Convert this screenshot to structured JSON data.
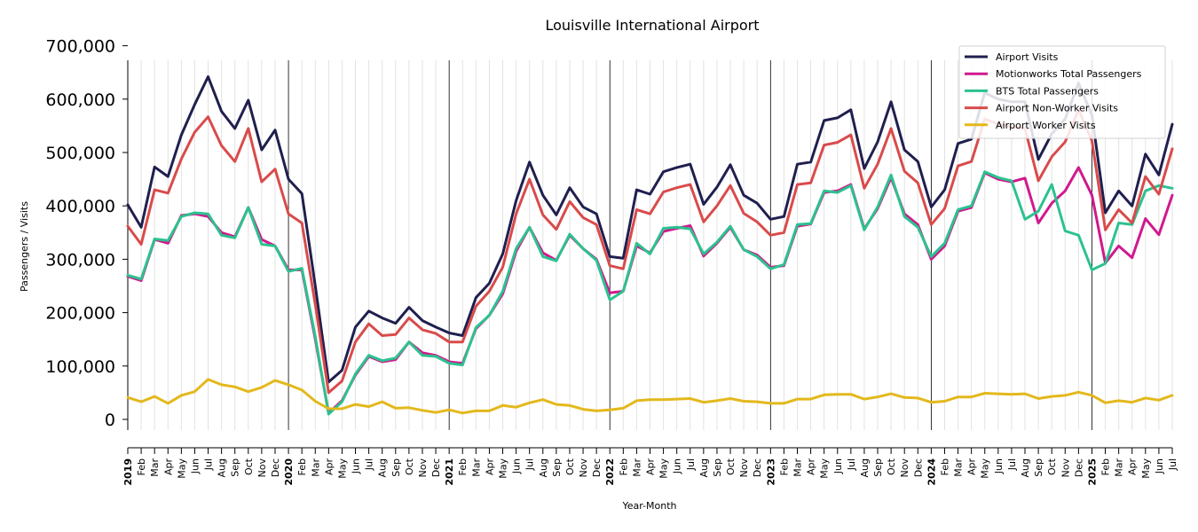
{
  "chart_data": {
    "type": "line",
    "title": "Louisville International Airport",
    "xlabel": "Year-Month",
    "ylabel": "Passengers / Visits",
    "ylim": [
      -20000,
      700000
    ],
    "yticks": [
      0,
      100000,
      200000,
      300000,
      400000,
      500000,
      600000,
      700000
    ],
    "ytick_labels": [
      "0",
      "100,000",
      "200,000",
      "300,000",
      "400,000",
      "500,000",
      "600,000",
      "700,000"
    ],
    "legend_position": "top-right",
    "year_labels": [
      "2019",
      "2020",
      "2021",
      "2022",
      "2023",
      "2024",
      "2025"
    ],
    "categories": [
      "2019",
      "Feb",
      "Mar",
      "Apr",
      "May",
      "Jun",
      "Jul",
      "Aug",
      "Sep",
      "Oct",
      "Nov",
      "Dec",
      "2020",
      "Feb",
      "Mar",
      "Apr",
      "May",
      "Jun",
      "Jul",
      "Aug",
      "Sep",
      "Oct",
      "Nov",
      "Dec",
      "2021",
      "Feb",
      "Mar",
      "Apr",
      "May",
      "Jun",
      "Jul",
      "Aug",
      "Sep",
      "Oct",
      "Nov",
      "Dec",
      "2022",
      "Feb",
      "Mar",
      "Apr",
      "May",
      "Jun",
      "Jul",
      "Aug",
      "Sep",
      "Oct",
      "Nov",
      "Dec",
      "2023",
      "Feb",
      "Mar",
      "Apr",
      "May",
      "Jun",
      "Jul",
      "Aug",
      "Sep",
      "Oct",
      "Nov",
      "Dec",
      "2024",
      "Feb",
      "Mar",
      "Apr",
      "May",
      "Jun",
      "Jul",
      "Aug",
      "Sep",
      "Oct",
      "Nov",
      "Dec",
      "2025",
      "Feb",
      "Mar",
      "Apr",
      "May",
      "Jun",
      "Jul"
    ],
    "series": [
      {
        "name": "Airport Visits",
        "color": "#1f1f4f",
        "values": [
          402000,
          360000,
          473000,
          455000,
          533000,
          590000,
          642000,
          577000,
          545000,
          598000,
          505000,
          542000,
          450000,
          423000,
          250000,
          70000,
          92000,
          173000,
          203000,
          190000,
          180000,
          210000,
          185000,
          173000,
          162000,
          157000,
          228000,
          255000,
          310000,
          410000,
          482000,
          420000,
          383000,
          434000,
          398000,
          385000,
          305000,
          302000,
          430000,
          422000,
          464000,
          472000,
          478000,
          403000,
          435000,
          477000,
          420000,
          405000,
          375000,
          380000,
          478000,
          482000,
          560000,
          565000,
          580000,
          470000,
          520000,
          595000,
          505000,
          483000,
          398000,
          430000,
          517000,
          525000,
          612000,
          600000,
          595000,
          595000,
          487000,
          535000,
          563000,
          630000,
          570000,
          387000,
          428000,
          400000,
          497000,
          458000,
          553000
        ]
      },
      {
        "name": "Motionworks Total Passengers",
        "color": "#d0198e",
        "values": [
          268000,
          260000,
          337000,
          330000,
          382000,
          385000,
          380000,
          350000,
          342000,
          397000,
          337000,
          325000,
          280000,
          280000,
          150000,
          12000,
          35000,
          83000,
          118000,
          108000,
          112000,
          145000,
          125000,
          120000,
          108000,
          105000,
          170000,
          195000,
          235000,
          315000,
          360000,
          312000,
          298000,
          345000,
          320000,
          300000,
          237000,
          240000,
          325000,
          312000,
          352000,
          358000,
          363000,
          306000,
          330000,
          360000,
          318000,
          308000,
          285000,
          288000,
          362000,
          366000,
          425000,
          428000,
          440000,
          357000,
          395000,
          453000,
          385000,
          365000,
          300000,
          325000,
          390000,
          397000,
          462000,
          450000,
          445000,
          452000,
          368000,
          405000,
          428000,
          472000,
          420000,
          293000,
          325000,
          303000,
          376000,
          346000,
          420000
        ]
      },
      {
        "name": "BTS Total Passengers",
        "color": "#2cc28f",
        "values": [
          270000,
          263000,
          338000,
          335000,
          380000,
          387000,
          385000,
          345000,
          340000,
          397000,
          328000,
          325000,
          277000,
          283000,
          155000,
          10000,
          33000,
          85000,
          120000,
          110000,
          115000,
          145000,
          120000,
          118000,
          105000,
          102000,
          172000,
          195000,
          240000,
          320000,
          360000,
          305000,
          297000,
          347000,
          320000,
          298000,
          224000,
          240000,
          330000,
          310000,
          358000,
          360000,
          357000,
          310000,
          332000,
          362000,
          318000,
          305000,
          282000,
          290000,
          365000,
          367000,
          428000,
          425000,
          438000,
          355000,
          398000,
          458000,
          380000,
          360000,
          305000,
          330000,
          393000,
          400000,
          464000,
          453000,
          447000,
          375000,
          390000,
          440000,
          353000,
          345000,
          280000,
          292000,
          368000,
          365000,
          428000,
          438000,
          433000
        ]
      },
      {
        "name": "Airport Non-Worker Visits",
        "color": "#d94b4b",
        "values": [
          362000,
          328000,
          430000,
          424000,
          488000,
          538000,
          567000,
          513000,
          483000,
          545000,
          445000,
          469000,
          385000,
          368000,
          215000,
          50000,
          72000,
          145000,
          179000,
          157000,
          159000,
          190000,
          168000,
          161000,
          145000,
          145000,
          212000,
          240000,
          285000,
          385000,
          450000,
          383000,
          356000,
          408000,
          378000,
          365000,
          288000,
          282000,
          393000,
          385000,
          426000,
          434000,
          440000,
          370000,
          400000,
          438000,
          386000,
          370000,
          345000,
          350000,
          440000,
          443000,
          514000,
          519000,
          533000,
          433000,
          478000,
          545000,
          465000,
          443000,
          365000,
          395000,
          475000,
          483000,
          563000,
          553000,
          548000,
          545000,
          447000,
          492000,
          520000,
          580000,
          522000,
          355000,
          393000,
          368000,
          455000,
          422000,
          507000
        ]
      },
      {
        "name": "Airport Worker Visits",
        "color": "#e3b81c",
        "values": [
          41000,
          33000,
          43000,
          30000,
          45000,
          52000,
          75000,
          65000,
          61000,
          52000,
          60000,
          73000,
          65000,
          55000,
          34000,
          20000,
          20000,
          28000,
          24000,
          33000,
          21000,
          22000,
          17000,
          13000,
          18000,
          12000,
          16000,
          16000,
          26000,
          23000,
          31000,
          37000,
          28000,
          26000,
          19000,
          16000,
          18000,
          21000,
          35000,
          37000,
          37000,
          38000,
          39000,
          32000,
          35000,
          39000,
          34000,
          33000,
          30000,
          30000,
          38000,
          38000,
          46000,
          47000,
          47000,
          38000,
          42000,
          48000,
          41000,
          40000,
          32000,
          34000,
          42000,
          42000,
          49000,
          48000,
          47000,
          48000,
          39000,
          43000,
          45000,
          51000,
          45000,
          31000,
          35000,
          32000,
          40000,
          36000,
          45000
        ]
      }
    ]
  }
}
